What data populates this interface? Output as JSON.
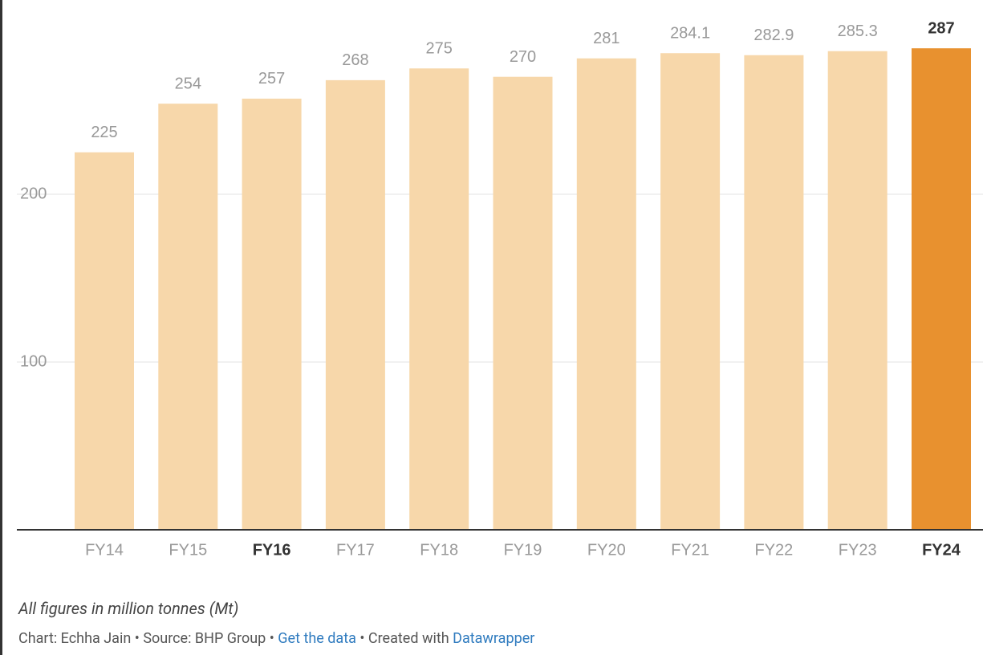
{
  "chart_data": {
    "type": "bar",
    "categories": [
      "FY14",
      "FY15",
      "FY16",
      "FY17",
      "FY18",
      "FY19",
      "FY20",
      "FY21",
      "FY22",
      "FY23",
      "FY24"
    ],
    "values": [
      225,
      254,
      257,
      268,
      275,
      270,
      281,
      284.1,
      282.9,
      285.3,
      287
    ],
    "colors": [
      "#f7d7aa",
      "#f7d7aa",
      "#f7d7aa",
      "#f7d7aa",
      "#f7d7aa",
      "#f7d7aa",
      "#f7d7aa",
      "#f7d7aa",
      "#f7d7aa",
      "#f7d7aa",
      "#e8912f"
    ],
    "bold_categories": [
      2,
      10
    ],
    "bold_value_labels": [
      10
    ],
    "ylim": [
      0,
      300
    ],
    "yticks": [
      100,
      200
    ],
    "grid": true,
    "note": "All figures in million tonnes (Mt)",
    "footer": {
      "byline": "Chart: Echha Jain",
      "separator": "•",
      "source": "Source: BHP Group",
      "get_data": "Get the data",
      "created": "Created with",
      "tool": "Datawrapper"
    }
  }
}
